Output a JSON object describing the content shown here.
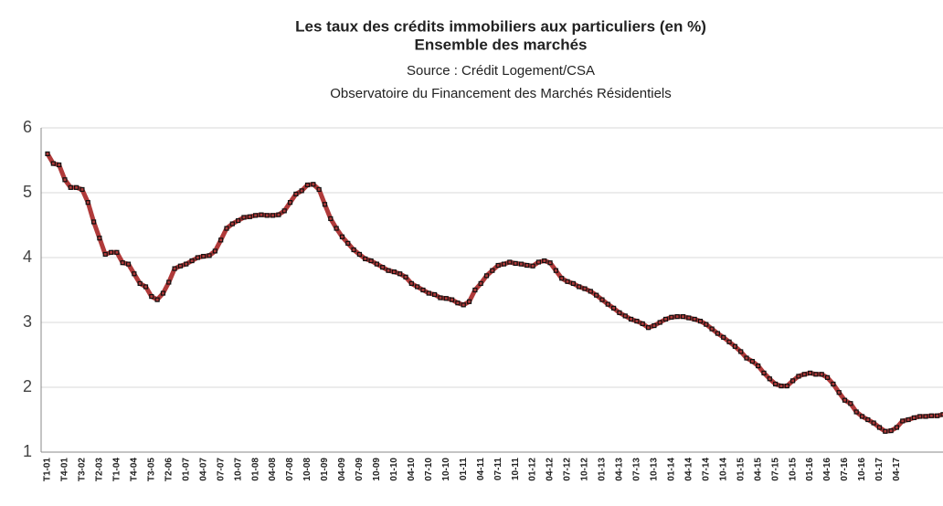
{
  "chart_data": {
    "type": "line",
    "title": "Les taux des crédits immobiliers aux particuliers (en %)",
    "subtitle": "Ensemble des marchés",
    "source": "Source : Crédit Logement/CSA",
    "note": "Observatoire du Financement des Marchés Résidentiels",
    "categories": [
      "T1-01",
      null,
      null,
      "T4-01",
      null,
      null,
      "T3-02",
      null,
      null,
      "T2-03",
      null,
      null,
      "T1-04",
      null,
      null,
      "T4-04",
      null,
      null,
      "T3-05",
      null,
      null,
      "T2-06",
      null,
      null,
      "01-07",
      null,
      null,
      "04-07",
      null,
      null,
      "07-07",
      null,
      null,
      "10-07",
      null,
      null,
      "01-08",
      null,
      null,
      "04-08",
      null,
      null,
      "07-08",
      null,
      null,
      "10-08",
      null,
      null,
      "01-09",
      null,
      null,
      "04-09",
      null,
      null,
      "07-09",
      null,
      null,
      "10-09",
      null,
      null,
      "01-10",
      null,
      null,
      "04-10",
      null,
      null,
      "07-10",
      null,
      null,
      "10-10",
      null,
      null,
      "01-11",
      null,
      null,
      "04-11",
      null,
      null,
      "07-11",
      null,
      null,
      "10-11",
      null,
      null,
      "01-12",
      null,
      null,
      "04-12",
      null,
      null,
      "07-12",
      null,
      null,
      "10-12",
      null,
      null,
      "01-13",
      null,
      null,
      "04-13",
      null,
      null,
      "07-13",
      null,
      null,
      "10-13",
      null,
      null,
      "01-14",
      null,
      null,
      "04-14",
      null,
      null,
      "07-14",
      null,
      null,
      "10-14",
      null,
      null,
      "01-15",
      null,
      null,
      "04-15",
      null,
      null,
      "07-15",
      null,
      null,
      "10-15",
      null,
      null,
      "01-16",
      null,
      null,
      "04-16",
      null,
      null,
      "07-16",
      null,
      null,
      "10-16",
      null,
      null,
      "01-17",
      null,
      null,
      "04-17",
      null,
      null,
      null,
      null,
      null,
      null,
      null,
      null
    ],
    "values": [
      5.6,
      5.45,
      5.43,
      5.2,
      5.08,
      5.08,
      5.05,
      4.85,
      4.55,
      4.3,
      4.05,
      4.08,
      4.08,
      3.92,
      3.9,
      3.75,
      3.6,
      3.55,
      3.4,
      3.35,
      3.45,
      3.62,
      3.83,
      3.87,
      3.9,
      3.95,
      4.0,
      4.02,
      4.03,
      4.1,
      4.27,
      4.45,
      4.52,
      4.57,
      4.62,
      4.63,
      4.65,
      4.66,
      4.65,
      4.65,
      4.66,
      4.72,
      4.85,
      4.98,
      5.03,
      5.12,
      5.13,
      5.05,
      4.82,
      4.6,
      4.45,
      4.32,
      4.22,
      4.12,
      4.05,
      3.98,
      3.95,
      3.9,
      3.85,
      3.8,
      3.78,
      3.75,
      3.7,
      3.6,
      3.55,
      3.5,
      3.45,
      3.43,
      3.38,
      3.37,
      3.35,
      3.3,
      3.27,
      3.32,
      3.5,
      3.6,
      3.72,
      3.8,
      3.88,
      3.9,
      3.93,
      3.91,
      3.9,
      3.88,
      3.87,
      3.93,
      3.95,
      3.92,
      3.8,
      3.68,
      3.63,
      3.6,
      3.55,
      3.52,
      3.48,
      3.42,
      3.35,
      3.28,
      3.22,
      3.15,
      3.1,
      3.05,
      3.02,
      2.98,
      2.92,
      2.95,
      3.0,
      3.05,
      3.08,
      3.09,
      3.09,
      3.07,
      3.05,
      3.02,
      2.97,
      2.9,
      2.83,
      2.77,
      2.7,
      2.63,
      2.55,
      2.45,
      2.4,
      2.33,
      2.22,
      2.13,
      2.05,
      2.02,
      2.02,
      2.1,
      2.17,
      2.2,
      2.22,
      2.2,
      2.2,
      2.15,
      2.05,
      1.92,
      1.8,
      1.75,
      1.62,
      1.55,
      1.5,
      1.45,
      1.38,
      1.32,
      1.33,
      1.38,
      1.48,
      1.5,
      1.53,
      1.55,
      1.55,
      1.56,
      1.56,
      1.58
    ],
    "color": "#b03a3a",
    "ylim": [
      1,
      6
    ],
    "yticks": [
      1,
      2,
      3,
      4,
      5,
      6
    ],
    "grid": true
  }
}
